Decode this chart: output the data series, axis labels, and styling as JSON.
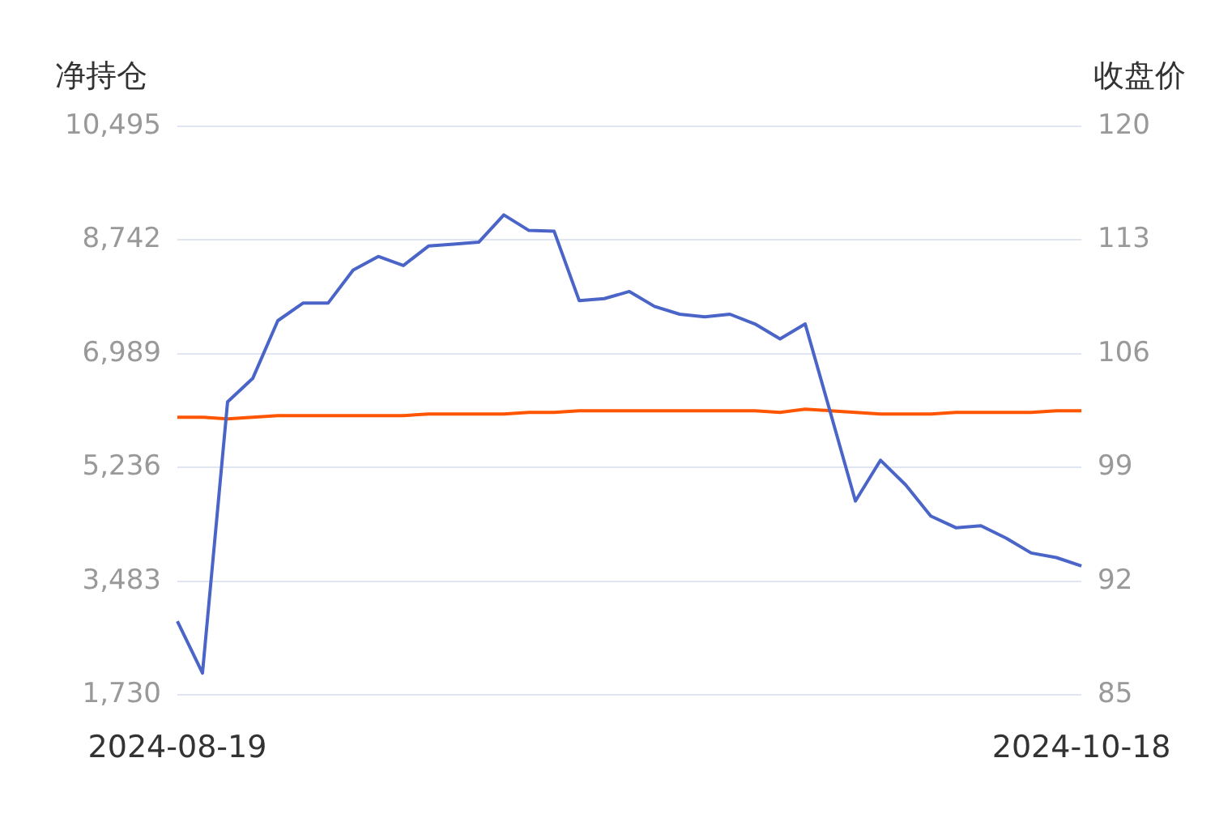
{
  "chart_data": {
    "type": "line",
    "ylabel": "净持仓",
    "y2label": "收盘价",
    "categories": [
      "2024-08-19",
      null,
      null,
      null,
      null,
      null,
      null,
      null,
      null,
      null,
      null,
      null,
      null,
      null,
      null,
      null,
      null,
      null,
      null,
      null,
      null,
      null,
      null,
      null,
      null,
      null,
      null,
      null,
      null,
      null,
      null,
      null,
      null,
      null,
      null,
      null,
      "2024-10-18"
    ],
    "series": [
      {
        "color": "#4a65c7",
        "values": [
          2870,
          2070,
          6250,
          6610,
          7500,
          7770,
          7770,
          8280,
          8490,
          8350,
          8650,
          8680,
          8710,
          9130,
          8890,
          8880,
          7810,
          7840,
          7950,
          7720,
          7600,
          7560,
          7600,
          7450,
          7220,
          7450,
          6090,
          4720,
          5350,
          4970,
          4490,
          4310,
          4340,
          4150,
          3920,
          3850,
          3720
        ]
      },
      {
        "color": "#ff5500",
        "axis": "y2",
        "values": [
          102.1,
          102.1,
          102.0,
          102.1,
          102.2,
          102.2,
          102.2,
          102.2,
          102.2,
          102.2,
          102.3,
          102.3,
          102.3,
          102.3,
          102.4,
          102.4,
          102.5,
          102.5,
          102.5,
          102.5,
          102.5,
          102.5,
          102.5,
          102.5,
          102.4,
          102.6,
          102.5,
          102.4,
          102.3,
          102.3,
          102.3,
          102.4,
          102.4,
          102.4,
          102.4,
          102.5,
          102.5
        ]
      }
    ],
    "ylim": [
      1730,
      10495
    ],
    "yticks": [
      {
        "value": 1730,
        "label": "1,730"
      },
      {
        "value": 3483,
        "label": "3,483"
      },
      {
        "value": 5236,
        "label": "5,236"
      },
      {
        "value": 6989,
        "label": "6,989"
      },
      {
        "value": 8742,
        "label": "8,742"
      },
      {
        "value": 10495,
        "label": "10,495"
      }
    ],
    "y2lim": [
      85,
      120
    ],
    "y2ticks": [
      85,
      92,
      99,
      106,
      113,
      120
    ],
    "grid": "y",
    "legend": false,
    "marker": "none",
    "line_style": "solid"
  }
}
